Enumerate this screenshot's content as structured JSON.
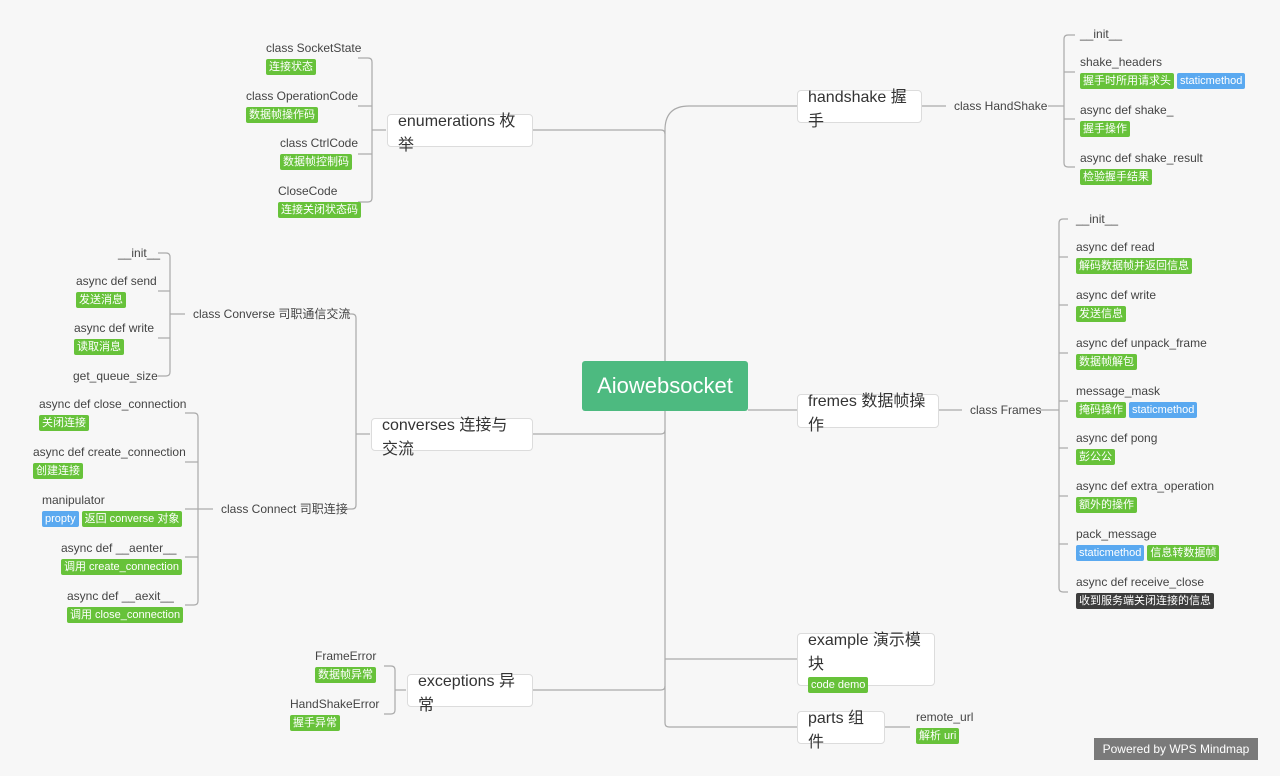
{
  "root": "Aiowebsocket",
  "tag_colors": {
    "green": "#67c23a",
    "blue": "#5aa9f0",
    "dark": "#3d3d3d"
  },
  "line_color": "#aaaaaa",
  "branches": {
    "handshake": {
      "title": "handshake 握手",
      "class": "class HandShake",
      "items": [
        {
          "name": "__init__",
          "tags": []
        },
        {
          "name": "shake_headers",
          "tags": [
            {
              "text": "握手时所用请求头",
              "type": "green"
            },
            {
              "text": "staticmethod",
              "type": "blue"
            }
          ]
        },
        {
          "name": "async def shake_",
          "tags": [
            {
              "text": "握手操作",
              "type": "green"
            }
          ]
        },
        {
          "name": "async def shake_result",
          "tags": [
            {
              "text": "检验握手结果",
              "type": "green"
            }
          ]
        }
      ]
    },
    "enumerations": {
      "title": "enumerations 枚举",
      "items": [
        {
          "name": "class SocketState",
          "tags": [
            {
              "text": "连接状态",
              "type": "green"
            }
          ]
        },
        {
          "name": "class OperationCode",
          "tags": [
            {
              "text": "数据帧操作码",
              "type": "green"
            }
          ]
        },
        {
          "name": "class CtrlCode",
          "tags": [
            {
              "text": "数据帧控制码",
              "type": "green"
            }
          ]
        },
        {
          "name": "CloseCode",
          "tags": [
            {
              "text": "连接关闭状态码",
              "type": "green"
            }
          ]
        }
      ]
    },
    "conversers": {
      "title": "converses 连接与交流",
      "converse": {
        "class": "class Converse 司职通信交流",
        "items": [
          {
            "name": "__init__",
            "tags": []
          },
          {
            "name": "async def send",
            "tags": [
              {
                "text": "发送消息",
                "type": "green"
              }
            ]
          },
          {
            "name": "async def write",
            "tags": [
              {
                "text": "读取消息",
                "type": "green"
              }
            ]
          },
          {
            "name": "get_queue_size",
            "tags": []
          }
        ]
      },
      "connect": {
        "class": "class Connect 司职连接",
        "items": [
          {
            "name": "async def close_connection",
            "tags": [
              {
                "text": "关闭连接",
                "type": "green"
              }
            ]
          },
          {
            "name": "async def create_connection",
            "tags": [
              {
                "text": "创建连接",
                "type": "green"
              }
            ]
          },
          {
            "name": "manipulator",
            "tags": [
              {
                "text": "propty",
                "type": "blue"
              },
              {
                "text": "返回 converse 对象",
                "type": "green"
              }
            ]
          },
          {
            "name": "async def __aenter__",
            "tags": [
              {
                "text": "调用 create_connection",
                "type": "green"
              }
            ]
          },
          {
            "name": "async def __aexit__",
            "tags": [
              {
                "text": "调用 close_connection",
                "type": "green"
              }
            ]
          }
        ]
      }
    },
    "fremes": {
      "title": "fremes 数据帧操作",
      "class": "class Frames",
      "items": [
        {
          "name": "__init__",
          "tags": []
        },
        {
          "name": "async def read",
          "tags": [
            {
              "text": "解码数据帧并返回信息",
              "type": "green"
            }
          ]
        },
        {
          "name": "async def write",
          "tags": [
            {
              "text": "发送信息",
              "type": "green"
            }
          ]
        },
        {
          "name": "async def unpack_frame",
          "tags": [
            {
              "text": "数据帧解包",
              "type": "green"
            }
          ]
        },
        {
          "name": "message_mask",
          "tags": [
            {
              "text": "掩码操作",
              "type": "green"
            },
            {
              "text": "staticmethod",
              "type": "blue"
            }
          ]
        },
        {
          "name": "async def pong",
          "tags": [
            {
              "text": "彭公公",
              "type": "green"
            }
          ]
        },
        {
          "name": "async def extra_operation",
          "tags": [
            {
              "text": "额外的操作",
              "type": "green"
            }
          ]
        },
        {
          "name": "pack_message",
          "tags": [
            {
              "text": "staticmethod",
              "type": "blue"
            },
            {
              "text": "信息转数据帧",
              "type": "green"
            }
          ]
        },
        {
          "name": "async def receive_close",
          "tags": [
            {
              "text": "收到服务端关闭连接的信息",
              "type": "dark"
            }
          ]
        }
      ]
    },
    "example": {
      "title": "example 演示模块",
      "tags": [
        {
          "text": "code demo",
          "type": "green"
        }
      ]
    },
    "exceptions": {
      "title": "exceptions 异常",
      "items": [
        {
          "name": "FrameError",
          "tags": [
            {
              "text": "数据帧异常",
              "type": "green"
            }
          ]
        },
        {
          "name": "HandShakeError",
          "tags": [
            {
              "text": "握手异常",
              "type": "green"
            }
          ]
        }
      ]
    },
    "parts": {
      "title": "parts 组件",
      "items": [
        {
          "name": "remote_url",
          "tags": [
            {
              "text": "解析 uri",
              "type": "green"
            }
          ]
        }
      ]
    }
  },
  "footer": "Powered by WPS Mindmap"
}
